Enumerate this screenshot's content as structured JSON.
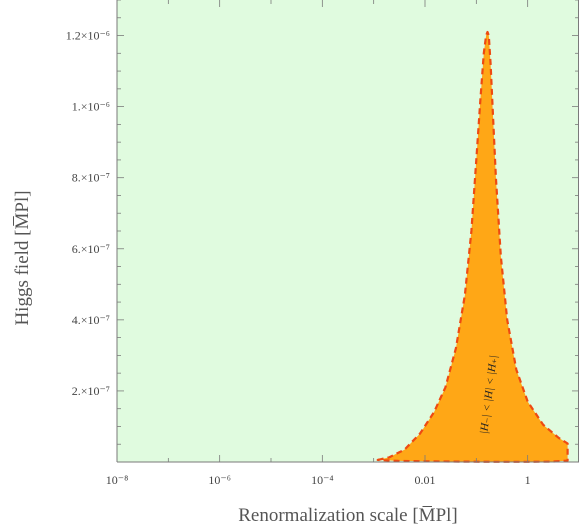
{
  "chart_data": {
    "type": "area",
    "xscale": "log",
    "xlim": [
      1e-08,
      10
    ],
    "ylim": [
      0,
      1.3e-06
    ],
    "xlabel": "Renormalization scale  [M̅Pl]",
    "ylabel": "Higgs field  [M̅Pl]",
    "x_tick_labels": [
      {
        "x": 1e-08,
        "label": "10⁻⁸"
      },
      {
        "x": 1e-06,
        "label": "10⁻⁶"
      },
      {
        "x": 0.0001,
        "label": "10⁻⁴"
      },
      {
        "x": 0.01,
        "label": "0.01"
      },
      {
        "x": 1,
        "label": "1"
      }
    ],
    "y_tick_labels": [
      {
        "y": 2e-07,
        "label": "2.×10⁻⁷"
      },
      {
        "y": 4e-07,
        "label": "4.×10⁻⁷"
      },
      {
        "y": 6e-07,
        "label": "6.×10⁻⁷"
      },
      {
        "y": 8e-07,
        "label": "8.×10⁻⁷"
      },
      {
        "y": 1e-06,
        "label": "1.×10⁻⁶"
      },
      {
        "y": 1.2e-06,
        "label": "1.2×10⁻⁶"
      }
    ],
    "region": {
      "label": "|H₋| < |H| < |H₊|",
      "fill": "#ffa716",
      "stroke": "#ee4a12",
      "upper_boundary": [
        [
          0.0012,
          6e-09
        ],
        [
          0.002,
          1.3e-08
        ],
        [
          0.004,
          3.5e-08
        ],
        [
          0.008,
          8e-08
        ],
        [
          0.015,
          1.4e-07
        ],
        [
          0.025,
          2.1e-07
        ],
        [
          0.04,
          3.2e-07
        ],
        [
          0.06,
          4.7e-07
        ],
        [
          0.08,
          6.5e-07
        ],
        [
          0.1,
          8.5e-07
        ],
        [
          0.12,
          1.02e-06
        ],
        [
          0.14,
          1.15e-06
        ],
        [
          0.155,
          1.2e-06
        ],
        [
          0.165,
          1.21e-06
        ],
        [
          0.175,
          1.2e-06
        ],
        [
          0.19,
          1.12e-06
        ],
        [
          0.21,
          9.8e-07
        ],
        [
          0.24,
          8e-07
        ],
        [
          0.3,
          5.8e-07
        ],
        [
          0.4,
          4e-07
        ],
        [
          0.6,
          2.6e-07
        ],
        [
          1,
          1.7e-07
        ],
        [
          2,
          1.05e-07
        ],
        [
          4,
          6.8e-08
        ],
        [
          6,
          5.2e-08
        ]
      ],
      "lower_boundary": [
        [
          6,
          4e-09
        ],
        [
          3,
          1e-09
        ],
        [
          1,
          5e-10
        ],
        [
          0.2,
          5e-10
        ],
        [
          0.05,
          1e-09
        ],
        [
          0.01,
          2e-09
        ],
        [
          0.003,
          3e-09
        ],
        [
          0.0012,
          6e-09
        ]
      ]
    }
  }
}
